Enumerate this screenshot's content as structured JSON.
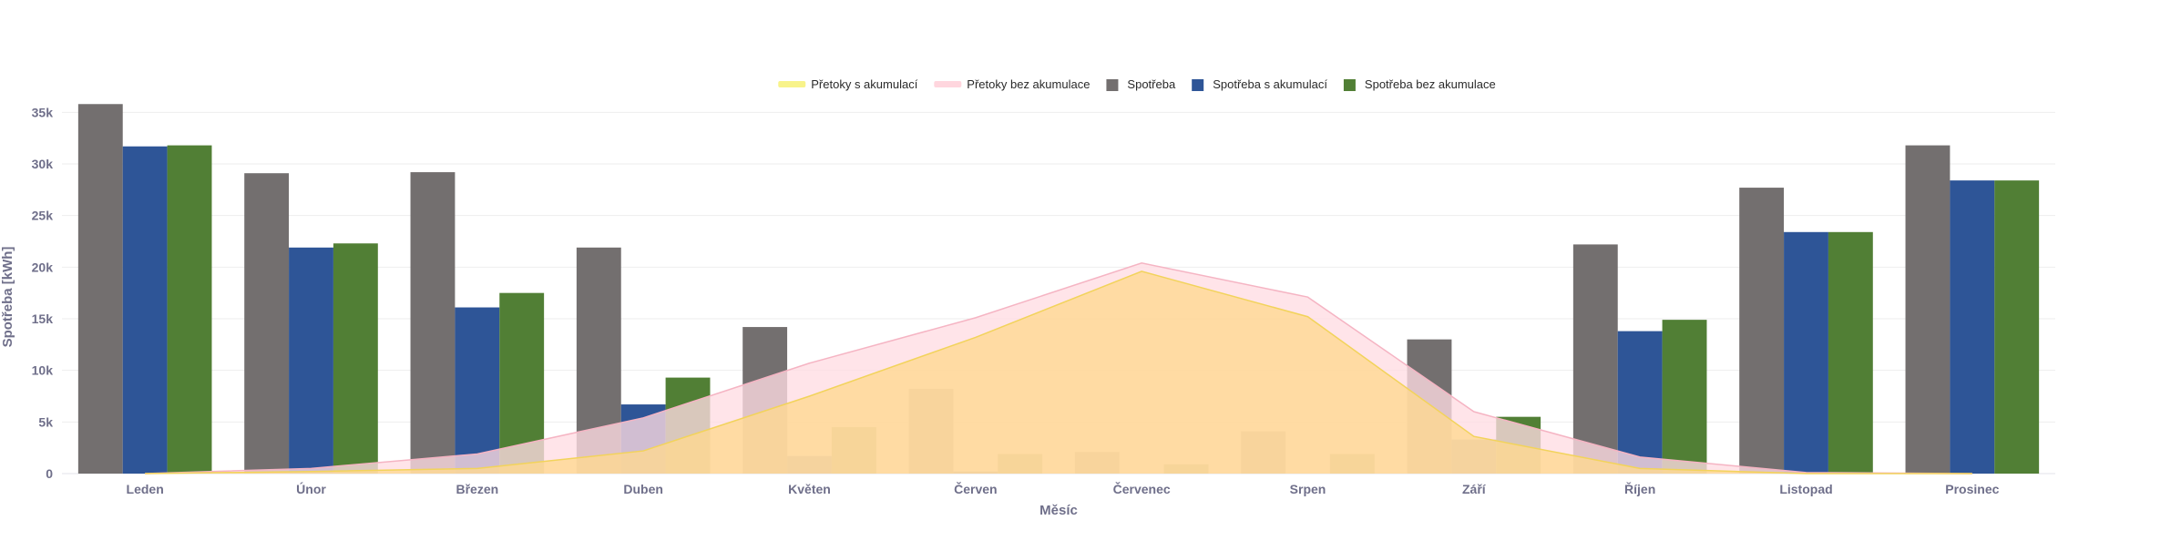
{
  "chart_data": {
    "type": "bar",
    "title": "",
    "xlabel": "Měsíc",
    "ylabel": "Spotřeba [kWh]",
    "ylim": [
      0,
      36000
    ],
    "yticks": [
      0,
      5000,
      10000,
      15000,
      20000,
      25000,
      30000,
      35000
    ],
    "ytick_labels": [
      "0",
      "5k",
      "10k",
      "15k",
      "20k",
      "25k",
      "30k",
      "35k"
    ],
    "grid": true,
    "legend_position": "top-center",
    "categories": [
      "Leden",
      "Únor",
      "Březen",
      "Duben",
      "Květen",
      "Červen",
      "Červenec",
      "Srpen",
      "Září",
      "Říjen",
      "Listopad",
      "Prosinec"
    ],
    "series": [
      {
        "name": "Spotřeba",
        "kind": "bar",
        "color": "#736f6f",
        "values": [
          35800,
          29100,
          29200,
          21900,
          14200,
          8200,
          2100,
          4100,
          13000,
          22200,
          27700,
          31800
        ]
      },
      {
        "name": "Spotřeba s akumulací",
        "kind": "bar",
        "color": "#2e5597",
        "values": [
          31700,
          21900,
          16100,
          6700,
          1700,
          200,
          0,
          0,
          3300,
          13800,
          23400,
          28400
        ]
      },
      {
        "name": "Spotřeba bez akumulace",
        "kind": "bar",
        "color": "#517f35",
        "values": [
          31800,
          22300,
          17500,
          9300,
          4500,
          1900,
          900,
          1900,
          5500,
          14900,
          23400,
          28400
        ]
      },
      {
        "name": "Přetoky s akumulací",
        "kind": "area",
        "color": "#ffd990",
        "line_color": "#f2d35b",
        "values": [
          0,
          200,
          500,
          2200,
          7500,
          13200,
          19600,
          15200,
          3600,
          500,
          0,
          0
        ]
      },
      {
        "name": "Přetoky bez akumulace",
        "kind": "area",
        "color": "#ffdde3",
        "line_color": "#f5b4c3",
        "values": [
          0,
          500,
          1900,
          5400,
          10700,
          15100,
          20400,
          17100,
          6000,
          1600,
          100,
          0
        ]
      }
    ],
    "legend": [
      {
        "label": "Přetoky s akumulací",
        "swatch": "line",
        "color": "#f8f38a"
      },
      {
        "label": "Přetoky bez akumulace",
        "swatch": "line",
        "color": "#ffd6de"
      },
      {
        "label": "Spotřeba",
        "swatch": "box",
        "color": "#736f6f"
      },
      {
        "label": "Spotřeba s akumulací",
        "swatch": "box",
        "color": "#2e5597"
      },
      {
        "label": "Spotřeba bez akumulace",
        "swatch": "box",
        "color": "#517f35"
      }
    ]
  }
}
